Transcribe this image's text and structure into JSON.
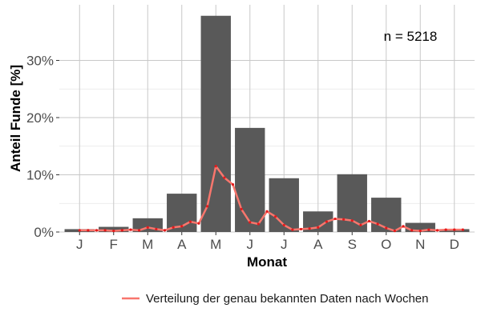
{
  "chart_data": {
    "type": "bar",
    "categories": [
      "J",
      "F",
      "M",
      "A",
      "M",
      "J",
      "J",
      "A",
      "S",
      "O",
      "N",
      "D"
    ],
    "values": [
      0.5,
      0.9,
      2.4,
      6.7,
      37.8,
      18.2,
      9.4,
      3.6,
      10.1,
      6.0,
      1.6,
      0.5
    ],
    "ylim": [
      0,
      40
    ],
    "yticks": [
      0,
      10,
      20,
      30
    ],
    "ytick_labels": [
      "0%",
      "10%",
      "20%",
      "30%"
    ],
    "xlabel": "Monat",
    "ylabel": "Anteil Funde [%]",
    "annotation": "n = 5218",
    "grid": true,
    "legend_position": "bottom",
    "bar_color": "#595959",
    "series": [
      {
        "name": "Verteilung der genau bekannten Daten nach Wochen",
        "type": "line",
        "color": "#f8766d",
        "point_color": "#e31a1c",
        "x": [
          0.0,
          0.25,
          0.5,
          0.75,
          1.0,
          1.25,
          1.5,
          1.75,
          2.0,
          2.25,
          2.5,
          2.75,
          3.0,
          3.25,
          3.5,
          3.75,
          4.0,
          4.25,
          4.5,
          4.75,
          5.0,
          5.25,
          5.5,
          5.75,
          6.0,
          6.25,
          6.5,
          6.75,
          7.0,
          7.25,
          7.5,
          7.75,
          8.0,
          8.25,
          8.5,
          8.75,
          9.0,
          9.25,
          9.5,
          9.75,
          10.0,
          10.25,
          10.5,
          10.75,
          11.0,
          11.25
        ],
        "values": [
          0.3,
          0.3,
          0.3,
          0.3,
          0.2,
          0.3,
          0.4,
          0.3,
          0.8,
          0.5,
          0.3,
          0.8,
          1.0,
          1.8,
          1.5,
          4.5,
          11.5,
          9.5,
          8.3,
          4.0,
          1.7,
          1.4,
          3.6,
          2.7,
          1.2,
          0.4,
          0.5,
          0.6,
          0.8,
          1.8,
          2.3,
          2.2,
          2.0,
          1.2,
          1.9,
          1.4,
          0.7,
          0.2,
          1.0,
          0.3,
          0.2,
          0.4,
          0.3,
          0.4,
          0.4,
          0.4
        ]
      }
    ]
  }
}
